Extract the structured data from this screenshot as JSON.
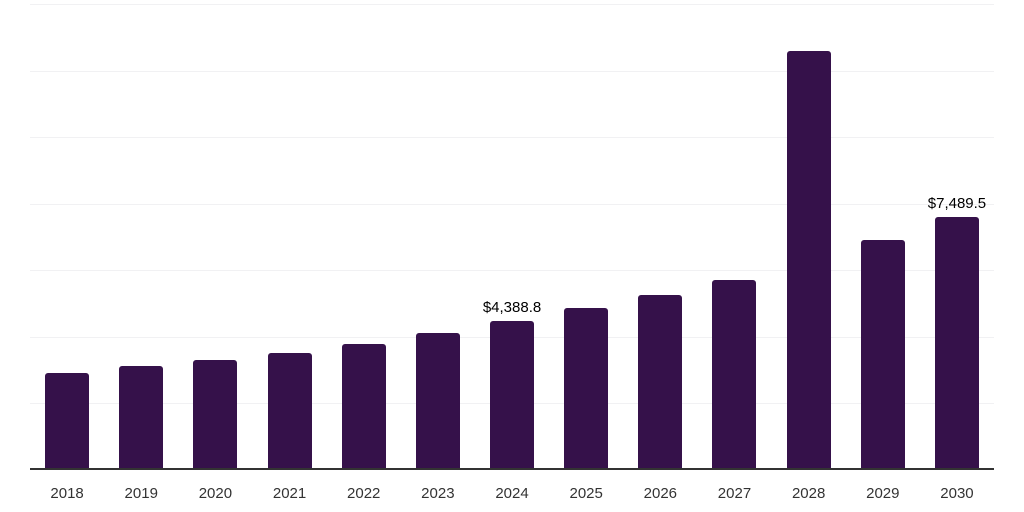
{
  "chart_data": {
    "type": "bar",
    "title": "",
    "xlabel": "",
    "ylabel": "",
    "categories": [
      "2018",
      "2019",
      "2020",
      "2021",
      "2022",
      "2023",
      "2024",
      "2025",
      "2026",
      "2027",
      "2028",
      "2029",
      "2030"
    ],
    "values": [
      2850,
      3030,
      3210,
      3440,
      3700,
      4040,
      4388.8,
      4770,
      5160,
      5620,
      12440,
      6800,
      7489.5
    ],
    "data_labels": {
      "2024": "$4,388.8",
      "2030": "$7,489.5"
    },
    "ylim": [
      0,
      13900
    ],
    "gridline_count": 7,
    "grid": "horizontal",
    "legend": "none",
    "y_axis_tick_labels": "none",
    "colors": {
      "bar": "#35114A",
      "gridline": "#F1F1F3",
      "axis_line": "#333333",
      "tick_label": "#333333",
      "data_label": "#000000"
    }
  }
}
